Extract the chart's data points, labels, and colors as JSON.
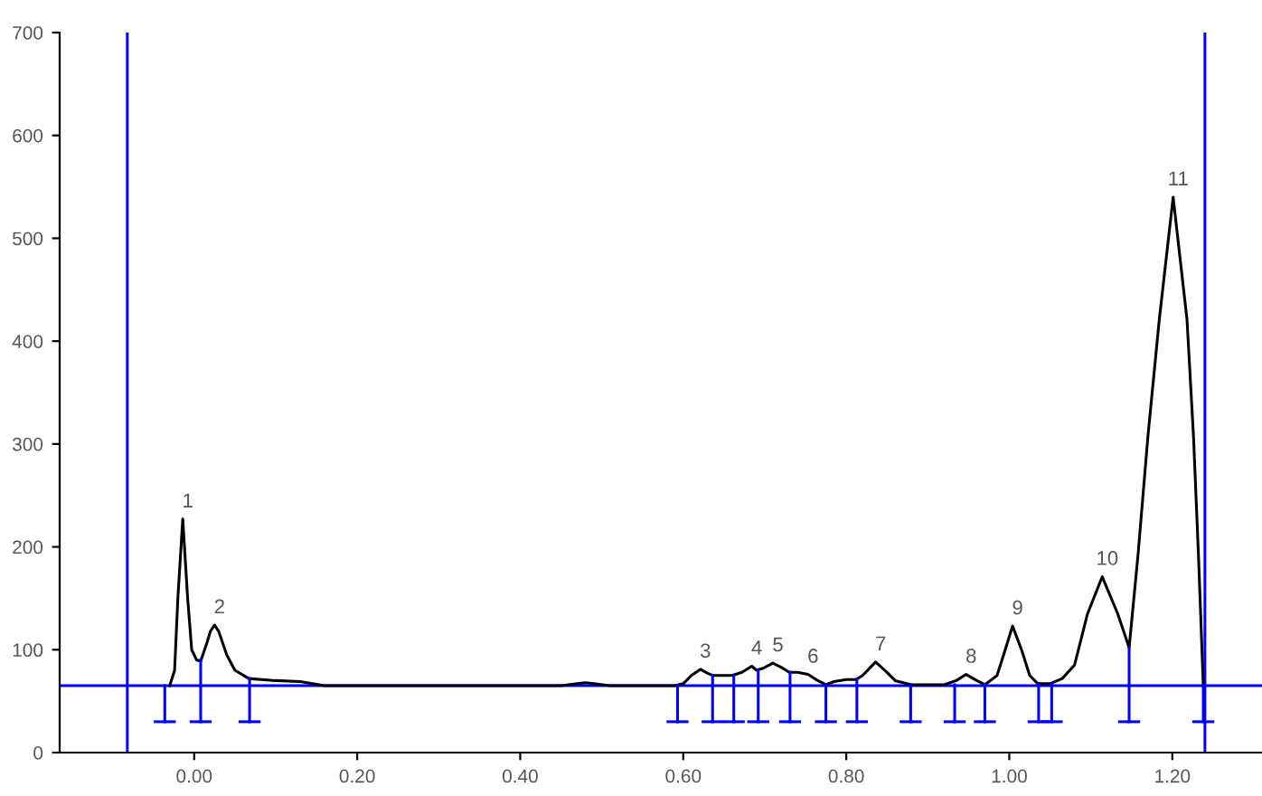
{
  "chart_data": {
    "type": "line",
    "xlim": [
      -0.165,
      1.31
    ],
    "ylim": [
      0,
      700
    ],
    "xticks": [
      {
        "value": 0.0,
        "label": "0.00"
      },
      {
        "value": 0.2,
        "label": "0.20"
      },
      {
        "value": 0.4,
        "label": "0.40"
      },
      {
        "value": 0.6,
        "label": "0.60"
      },
      {
        "value": 0.8,
        "label": "0.80"
      },
      {
        "value": 1.0,
        "label": "1.00"
      },
      {
        "value": 1.2,
        "label": "1.20"
      }
    ],
    "yticks": [
      0,
      100,
      200,
      300,
      400,
      500,
      600,
      700
    ],
    "grid": false,
    "marker": "none",
    "line_style": "solid",
    "series": [
      {
        "color": "#000000",
        "x": [
          -0.03,
          -0.024,
          -0.02,
          -0.014,
          -0.008,
          -0.003,
          0.003,
          0.008,
          0.015,
          0.02,
          0.025,
          0.03,
          0.04,
          0.05,
          0.067,
          0.1,
          0.13,
          0.16,
          0.45,
          0.47,
          0.48,
          0.49,
          0.51,
          0.59,
          0.6,
          0.61,
          0.621,
          0.63,
          0.636,
          0.66,
          0.672,
          0.684,
          0.69,
          0.698,
          0.71,
          0.72,
          0.73,
          0.74,
          0.753,
          0.765,
          0.775,
          0.785,
          0.8,
          0.812,
          0.82,
          0.836,
          0.85,
          0.86,
          0.88,
          0.92,
          0.935,
          0.947,
          0.96,
          0.97,
          0.985,
          0.995,
          1.004,
          1.015,
          1.025,
          1.035,
          1.05,
          1.065,
          1.08,
          1.096,
          1.114,
          1.133,
          1.147,
          1.158,
          1.17,
          1.184,
          1.201,
          1.218,
          1.226,
          1.232,
          1.238
        ],
        "values": [
          65,
          80,
          150,
          227,
          150,
          100,
          90,
          89,
          105,
          118,
          124,
          118,
          95,
          80,
          72,
          70,
          69,
          65,
          65,
          67,
          68,
          67,
          65,
          65,
          67,
          75,
          81,
          77,
          75,
          75,
          78,
          84,
          80,
          82,
          87,
          83,
          78,
          78,
          76,
          70,
          66,
          69,
          71,
          71,
          75,
          88,
          78,
          70,
          66,
          66,
          70,
          76,
          70,
          66,
          75,
          100,
          123,
          100,
          75,
          67,
          67,
          72,
          85,
          135,
          171,
          135,
          102,
          193,
          307,
          421,
          540,
          421,
          307,
          193,
          65
        ]
      },
      {
        "color": "#0000ff",
        "x": [
          -0.036,
          -0.036,
          null,
          0.008,
          0.008,
          null,
          0.068,
          0.068,
          null,
          0.593,
          0.593,
          null,
          0.636,
          0.636,
          null,
          0.662,
          0.662,
          null,
          0.692,
          0.692,
          null,
          0.731,
          0.731,
          null,
          0.775,
          0.775,
          null,
          0.813,
          0.813,
          null,
          0.879,
          0.879,
          null,
          0.933,
          0.933,
          null,
          0.97,
          0.97,
          null,
          1.036,
          1.036,
          null,
          1.052,
          1.052,
          null,
          1.147,
          1.147,
          null,
          1.238,
          1.238
        ],
        "values": [
          65,
          30,
          null,
          90,
          30,
          null,
          72,
          30,
          null,
          65,
          30,
          null,
          75,
          30,
          null,
          75,
          30,
          null,
          80,
          30,
          null,
          78,
          30,
          null,
          66,
          30,
          null,
          71,
          30,
          null,
          66,
          30,
          null,
          66,
          30,
          null,
          66,
          30,
          null,
          67,
          30,
          null,
          67,
          30,
          null,
          102,
          30,
          null,
          65,
          30
        ]
      }
    ],
    "ref_lines": [
      {
        "axis": "x",
        "value": -0.082,
        "color": "#0000ff"
      },
      {
        "axis": "x",
        "value": 1.24,
        "color": "#0000ff"
      },
      {
        "axis": "y",
        "value": 65,
        "color": "#0000ff"
      }
    ],
    "annotations": [
      {
        "text": "1",
        "x": -0.014,
        "y": 227
      },
      {
        "text": "2",
        "x": 0.025,
        "y": 124
      },
      {
        "text": "3",
        "x": 0.621,
        "y": 81
      },
      {
        "text": "4",
        "x": 0.684,
        "y": 84
      },
      {
        "text": "5",
        "x": 0.71,
        "y": 87
      },
      {
        "text": "6",
        "x": 0.753,
        "y": 76
      },
      {
        "text": "7",
        "x": 0.836,
        "y": 88
      },
      {
        "text": "8",
        "x": 0.947,
        "y": 76
      },
      {
        "text": "9",
        "x": 1.004,
        "y": 123
      },
      {
        "text": "10",
        "x": 1.114,
        "y": 171
      },
      {
        "text": "11",
        "x": 1.201,
        "y": 540
      }
    ]
  }
}
